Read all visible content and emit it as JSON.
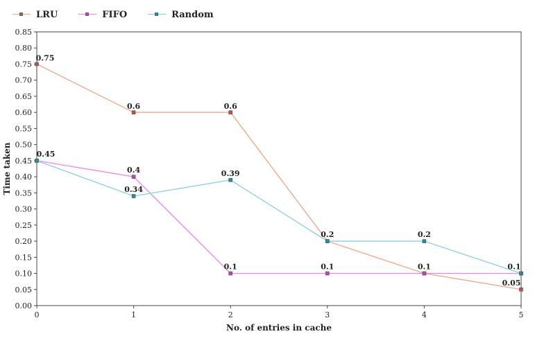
{
  "chart_data": {
    "type": "line",
    "title": "",
    "xlabel": "No. of entries in cache",
    "ylabel": "Time taken",
    "x": [
      0,
      1,
      2,
      3,
      4,
      5
    ],
    "xlim": [
      0,
      5
    ],
    "ylim": [
      0,
      0.85
    ],
    "y_ticks": [
      "0.00",
      "0.05",
      "0.10",
      "0.15",
      "0.20",
      "0.25",
      "0.30",
      "0.35",
      "0.40",
      "0.45",
      "0.50",
      "0.55",
      "0.60",
      "0.65",
      "0.70",
      "0.75",
      "0.80",
      "0.85"
    ],
    "x_ticks": [
      "0",
      "1",
      "2",
      "3",
      "4",
      "5"
    ],
    "grid": false,
    "legend_position": "top-left",
    "series": [
      {
        "name": "LRU",
        "line_color": "#f4a582",
        "marker_color": "#c0504d",
        "values": [
          0.75,
          0.6,
          0.6,
          0.2,
          0.1,
          0.05
        ],
        "labels": [
          "0.75",
          "0.6",
          "0.6",
          "",
          "",
          "0.05"
        ]
      },
      {
        "name": "FIFO",
        "line_color": "#ee82ee",
        "marker_color": "#c040c0",
        "values": [
          0.45,
          0.4,
          0.1,
          0.1,
          0.1,
          0.1
        ],
        "labels": [
          "",
          "0.4",
          "0.1",
          "0.1",
          "0.1",
          "0.1"
        ]
      },
      {
        "name": "Random",
        "line_color": "#87cfe0",
        "marker_color": "#1f8ea3",
        "values": [
          0.45,
          0.34,
          0.39,
          0.2,
          0.2,
          0.1
        ],
        "labels": [
          "0.45",
          "0.34",
          "0.39",
          "0.2",
          "0.2",
          ""
        ]
      }
    ]
  }
}
